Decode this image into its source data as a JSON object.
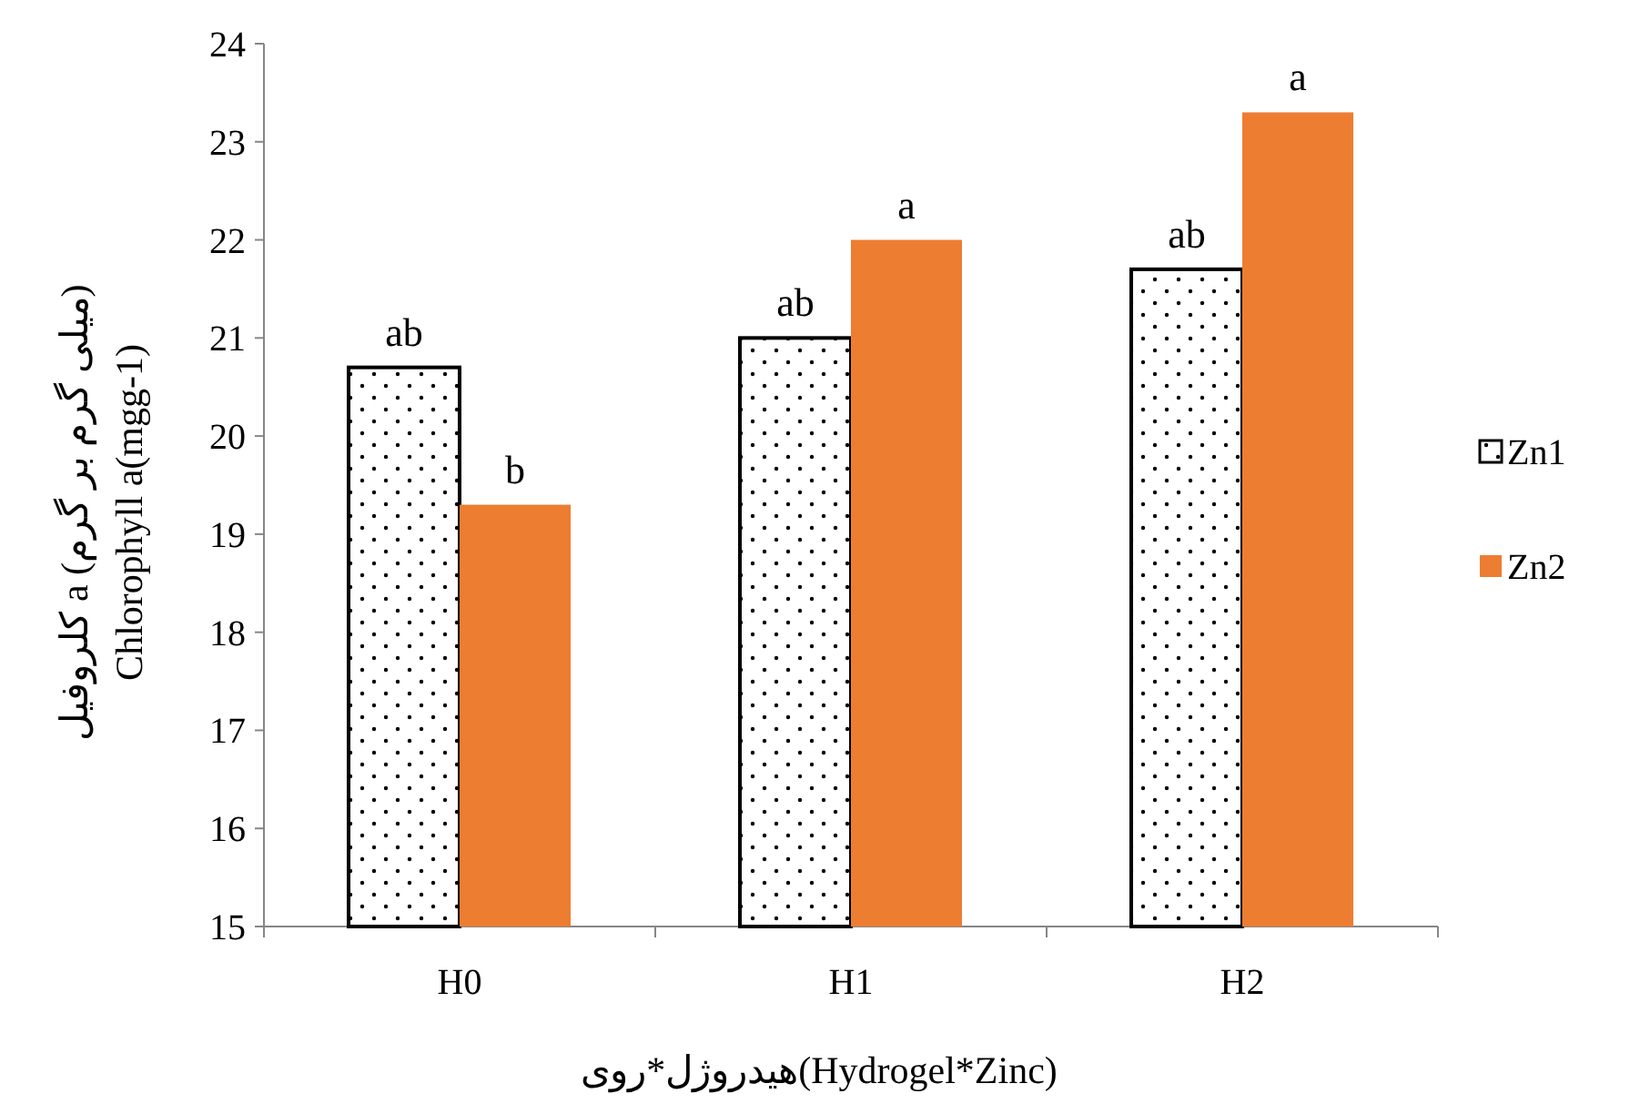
{
  "chart_data": {
    "type": "bar",
    "categories": [
      "H0",
      "H1",
      "H2"
    ],
    "series": [
      {
        "name": "Zn1",
        "color": "#000000",
        "values": [
          20.7,
          21.0,
          21.7
        ],
        "value_labels": [
          "ab",
          "ab",
          "ab"
        ]
      },
      {
        "name": "Zn2",
        "color": "#ed7d31",
        "values": [
          19.3,
          22.0,
          23.3
        ],
        "value_labels": [
          "b",
          "a",
          "a"
        ]
      }
    ],
    "ylim": [
      15,
      24
    ],
    "yticks": [
      15,
      16,
      17,
      18,
      19,
      20,
      21,
      22,
      23,
      24
    ],
    "ylabel": "کلروفیل a (میلی گرم بر گرم)\nChlorophyll a(mgg-1)",
    "xlabel": "هیدروژل*روی(Hydrogel*Zinc)",
    "legend": "right",
    "grid": false
  }
}
